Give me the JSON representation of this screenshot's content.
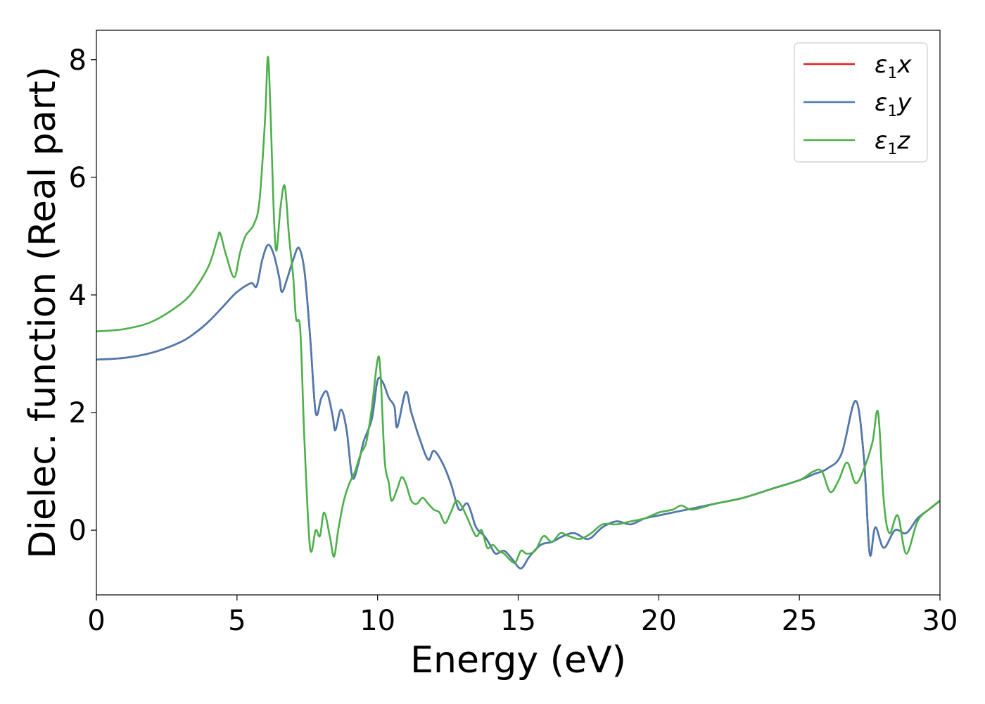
{
  "chart_data": {
    "type": "line",
    "xlabel": "Energy (eV)",
    "ylabel": "Dielec. function (Real part)",
    "xlim": [
      0,
      30
    ],
    "ylim": [
      -1.1,
      8.5
    ],
    "xticks": [
      "0",
      "5",
      "10",
      "15",
      "20",
      "25",
      "30"
    ],
    "yticks": [
      "0",
      "2",
      "4",
      "6",
      "8"
    ],
    "grid": false,
    "legend_position": "top-right",
    "series": [
      {
        "name": "ε1x",
        "legend_base": "ε",
        "legend_sub": "1",
        "legend_suffix": "x",
        "color": "#e41a1c",
        "points": [
          [
            0,
            2.9
          ],
          [
            1,
            2.93
          ],
          [
            2,
            3.02
          ],
          [
            3,
            3.2
          ],
          [
            3.5,
            3.35
          ],
          [
            4,
            3.55
          ],
          [
            4.5,
            3.8
          ],
          [
            5,
            4.05
          ],
          [
            5.5,
            4.2
          ],
          [
            5.7,
            4.15
          ],
          [
            5.9,
            4.6
          ],
          [
            6.1,
            4.85
          ],
          [
            6.3,
            4.7
          ],
          [
            6.5,
            4.3
          ],
          [
            6.6,
            4.05
          ],
          [
            6.8,
            4.3
          ],
          [
            7,
            4.6
          ],
          [
            7.2,
            4.8
          ],
          [
            7.4,
            4.4
          ],
          [
            7.6,
            3.3
          ],
          [
            7.8,
            2.0
          ],
          [
            8.0,
            2.25
          ],
          [
            8.2,
            2.35
          ],
          [
            8.4,
            1.95
          ],
          [
            8.5,
            1.7
          ],
          [
            8.7,
            2.05
          ],
          [
            8.9,
            1.7
          ],
          [
            9.1,
            0.9
          ],
          [
            9.3,
            1.1
          ],
          [
            9.5,
            1.5
          ],
          [
            9.8,
            1.9
          ],
          [
            10.0,
            2.55
          ],
          [
            10.2,
            2.5
          ],
          [
            10.4,
            2.25
          ],
          [
            10.6,
            2.1
          ],
          [
            10.7,
            1.75
          ],
          [
            11.0,
            2.35
          ],
          [
            11.2,
            2.0
          ],
          [
            11.5,
            1.55
          ],
          [
            11.8,
            1.2
          ],
          [
            12.0,
            1.35
          ],
          [
            12.3,
            1.15
          ],
          [
            12.6,
            0.8
          ],
          [
            12.9,
            0.35
          ],
          [
            13.2,
            0.45
          ],
          [
            13.5,
            0.05
          ],
          [
            13.8,
            -0.1
          ],
          [
            14.0,
            -0.25
          ],
          [
            14.2,
            -0.4
          ],
          [
            14.5,
            -0.35
          ],
          [
            14.8,
            -0.5
          ],
          [
            15.1,
            -0.65
          ],
          [
            15.4,
            -0.45
          ],
          [
            15.8,
            -0.25
          ],
          [
            16.2,
            -0.2
          ],
          [
            16.6,
            -0.1
          ],
          [
            17.0,
            -0.05
          ],
          [
            17.5,
            -0.15
          ],
          [
            18.0,
            0.05
          ],
          [
            18.5,
            0.15
          ],
          [
            19.0,
            0.1
          ],
          [
            19.5,
            0.2
          ],
          [
            20.0,
            0.25
          ],
          [
            20.5,
            0.3
          ],
          [
            21.0,
            0.35
          ],
          [
            22.0,
            0.45
          ],
          [
            23.0,
            0.55
          ],
          [
            24.0,
            0.7
          ],
          [
            25.0,
            0.85
          ],
          [
            25.5,
            0.95
          ],
          [
            26.0,
            1.05
          ],
          [
            26.5,
            1.3
          ],
          [
            27.0,
            2.2
          ],
          [
            27.3,
            1.2
          ],
          [
            27.5,
            -0.4
          ],
          [
            27.7,
            0.05
          ],
          [
            28.0,
            -0.3
          ],
          [
            28.4,
            0.0
          ],
          [
            28.8,
            -0.05
          ],
          [
            29.2,
            0.2
          ],
          [
            29.6,
            0.35
          ],
          [
            30.0,
            0.5
          ]
        ]
      },
      {
        "name": "ε1y",
        "legend_base": "ε",
        "legend_sub": "1",
        "legend_suffix": "y",
        "color": "#4a7bb0",
        "points": [
          [
            0,
            2.9
          ],
          [
            1,
            2.93
          ],
          [
            2,
            3.02
          ],
          [
            3,
            3.2
          ],
          [
            3.5,
            3.35
          ],
          [
            4,
            3.55
          ],
          [
            4.5,
            3.8
          ],
          [
            5,
            4.05
          ],
          [
            5.5,
            4.2
          ],
          [
            5.7,
            4.15
          ],
          [
            5.9,
            4.6
          ],
          [
            6.1,
            4.85
          ],
          [
            6.3,
            4.7
          ],
          [
            6.5,
            4.3
          ],
          [
            6.6,
            4.05
          ],
          [
            6.8,
            4.3
          ],
          [
            7,
            4.6
          ],
          [
            7.2,
            4.8
          ],
          [
            7.4,
            4.4
          ],
          [
            7.6,
            3.3
          ],
          [
            7.8,
            2.0
          ],
          [
            8.0,
            2.25
          ],
          [
            8.2,
            2.35
          ],
          [
            8.4,
            1.95
          ],
          [
            8.5,
            1.7
          ],
          [
            8.7,
            2.05
          ],
          [
            8.9,
            1.7
          ],
          [
            9.1,
            0.9
          ],
          [
            9.3,
            1.1
          ],
          [
            9.5,
            1.5
          ],
          [
            9.8,
            1.9
          ],
          [
            10.0,
            2.55
          ],
          [
            10.2,
            2.5
          ],
          [
            10.4,
            2.25
          ],
          [
            10.6,
            2.1
          ],
          [
            10.7,
            1.75
          ],
          [
            11.0,
            2.35
          ],
          [
            11.2,
            2.0
          ],
          [
            11.5,
            1.55
          ],
          [
            11.8,
            1.2
          ],
          [
            12.0,
            1.35
          ],
          [
            12.3,
            1.15
          ],
          [
            12.6,
            0.8
          ],
          [
            12.9,
            0.35
          ],
          [
            13.2,
            0.45
          ],
          [
            13.5,
            0.05
          ],
          [
            13.8,
            -0.1
          ],
          [
            14.0,
            -0.25
          ],
          [
            14.2,
            -0.4
          ],
          [
            14.5,
            -0.35
          ],
          [
            14.8,
            -0.5
          ],
          [
            15.1,
            -0.65
          ],
          [
            15.4,
            -0.45
          ],
          [
            15.8,
            -0.25
          ],
          [
            16.2,
            -0.2
          ],
          [
            16.6,
            -0.1
          ],
          [
            17.0,
            -0.05
          ],
          [
            17.5,
            -0.15
          ],
          [
            18.0,
            0.05
          ],
          [
            18.5,
            0.15
          ],
          [
            19.0,
            0.1
          ],
          [
            19.5,
            0.2
          ],
          [
            20.0,
            0.25
          ],
          [
            20.5,
            0.3
          ],
          [
            21.0,
            0.35
          ],
          [
            22.0,
            0.45
          ],
          [
            23.0,
            0.55
          ],
          [
            24.0,
            0.7
          ],
          [
            25.0,
            0.85
          ],
          [
            25.5,
            0.95
          ],
          [
            26.0,
            1.05
          ],
          [
            26.5,
            1.3
          ],
          [
            27.0,
            2.2
          ],
          [
            27.3,
            1.2
          ],
          [
            27.5,
            -0.4
          ],
          [
            27.7,
            0.05
          ],
          [
            28.0,
            -0.3
          ],
          [
            28.4,
            0.0
          ],
          [
            28.8,
            -0.05
          ],
          [
            29.2,
            0.2
          ],
          [
            29.6,
            0.35
          ],
          [
            30.0,
            0.5
          ]
        ]
      },
      {
        "name": "ε1z",
        "legend_base": "ε",
        "legend_sub": "1",
        "legend_suffix": "z",
        "color": "#4daf4a",
        "points": [
          [
            0,
            3.38
          ],
          [
            1,
            3.42
          ],
          [
            2,
            3.55
          ],
          [
            3,
            3.85
          ],
          [
            3.5,
            4.1
          ],
          [
            4,
            4.5
          ],
          [
            4.3,
            4.95
          ],
          [
            4.4,
            5.05
          ],
          [
            4.6,
            4.7
          ],
          [
            4.9,
            4.3
          ],
          [
            5.1,
            4.7
          ],
          [
            5.3,
            5.0
          ],
          [
            5.6,
            5.2
          ],
          [
            5.8,
            5.6
          ],
          [
            6.0,
            7.0
          ],
          [
            6.1,
            8.05
          ],
          [
            6.2,
            7.0
          ],
          [
            6.3,
            5.5
          ],
          [
            6.4,
            4.75
          ],
          [
            6.55,
            5.5
          ],
          [
            6.7,
            5.85
          ],
          [
            6.85,
            5.0
          ],
          [
            7.0,
            4.3
          ],
          [
            7.1,
            3.6
          ],
          [
            7.25,
            3.4
          ],
          [
            7.4,
            1.5
          ],
          [
            7.6,
            -0.3
          ],
          [
            7.8,
            0.0
          ],
          [
            7.95,
            -0.1
          ],
          [
            8.1,
            0.3
          ],
          [
            8.3,
            -0.1
          ],
          [
            8.45,
            -0.45
          ],
          [
            8.6,
            0.0
          ],
          [
            8.8,
            0.5
          ],
          [
            9.0,
            0.8
          ],
          [
            9.2,
            1.0
          ],
          [
            9.4,
            1.3
          ],
          [
            9.6,
            1.5
          ],
          [
            9.8,
            2.1
          ],
          [
            10.0,
            2.9
          ],
          [
            10.1,
            2.7
          ],
          [
            10.25,
            1.2
          ],
          [
            10.4,
            0.8
          ],
          [
            10.5,
            0.5
          ],
          [
            10.7,
            0.7
          ],
          [
            10.85,
            0.9
          ],
          [
            11.0,
            0.8
          ],
          [
            11.2,
            0.5
          ],
          [
            11.4,
            0.45
          ],
          [
            11.6,
            0.55
          ],
          [
            11.8,
            0.45
          ],
          [
            12.0,
            0.35
          ],
          [
            12.2,
            0.3
          ],
          [
            12.4,
            0.12
          ],
          [
            12.6,
            0.3
          ],
          [
            12.8,
            0.5
          ],
          [
            13.0,
            0.4
          ],
          [
            13.2,
            0.2
          ],
          [
            13.5,
            -0.1
          ],
          [
            13.7,
            0.0
          ],
          [
            13.9,
            -0.3
          ],
          [
            14.1,
            -0.25
          ],
          [
            14.3,
            -0.35
          ],
          [
            14.5,
            -0.4
          ],
          [
            14.7,
            -0.5
          ],
          [
            14.9,
            -0.55
          ],
          [
            15.1,
            -0.35
          ],
          [
            15.3,
            -0.4
          ],
          [
            15.6,
            -0.35
          ],
          [
            15.9,
            -0.1
          ],
          [
            16.2,
            -0.2
          ],
          [
            16.5,
            -0.05
          ],
          [
            16.8,
            -0.1
          ],
          [
            17.2,
            -0.15
          ],
          [
            17.6,
            -0.05
          ],
          [
            18.0,
            0.1
          ],
          [
            18.5,
            0.1
          ],
          [
            19.0,
            0.15
          ],
          [
            19.5,
            0.2
          ],
          [
            20.0,
            0.3
          ],
          [
            20.5,
            0.35
          ],
          [
            20.8,
            0.42
          ],
          [
            21.2,
            0.35
          ],
          [
            22.0,
            0.45
          ],
          [
            23.0,
            0.55
          ],
          [
            24.0,
            0.7
          ],
          [
            25.0,
            0.85
          ],
          [
            25.5,
            1.0
          ],
          [
            25.8,
            1.0
          ],
          [
            26.1,
            0.65
          ],
          [
            26.4,
            0.85
          ],
          [
            26.7,
            1.15
          ],
          [
            27.0,
            0.8
          ],
          [
            27.3,
            1.05
          ],
          [
            27.6,
            1.5
          ],
          [
            27.8,
            2.0
          ],
          [
            28.0,
            0.5
          ],
          [
            28.2,
            -0.05
          ],
          [
            28.5,
            0.25
          ],
          [
            28.8,
            -0.4
          ],
          [
            29.2,
            0.15
          ],
          [
            29.6,
            0.35
          ],
          [
            30.0,
            0.5
          ]
        ]
      }
    ]
  }
}
